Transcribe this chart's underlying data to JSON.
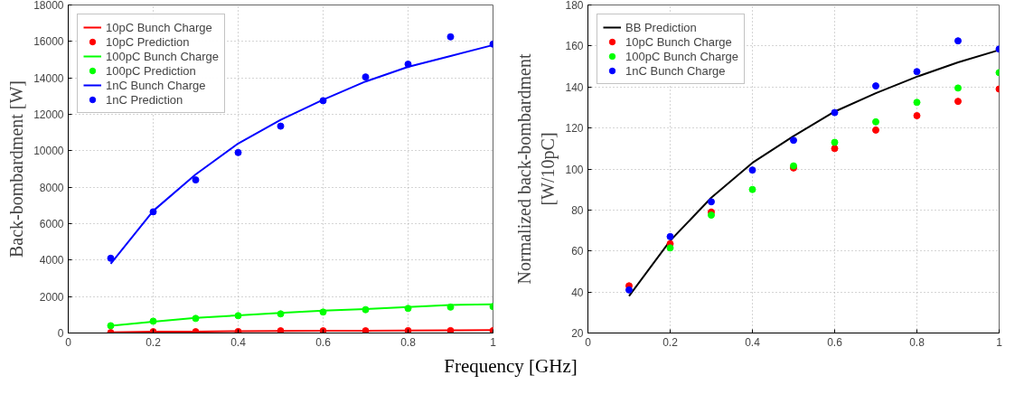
{
  "chart_data": [
    {
      "type": "line",
      "xlabel": "Frequency [GHz]",
      "ylabel": "Back-bombardment [W]",
      "x": [
        0.1,
        0.2,
        0.3,
        0.4,
        0.5,
        0.6,
        0.7,
        0.8,
        0.9,
        1.0
      ],
      "xlim": [
        0,
        1
      ],
      "xticks": [
        0,
        0.2,
        0.4,
        0.6,
        0.8,
        1
      ],
      "ylim": [
        0,
        18000
      ],
      "yticks": [
        0,
        2000,
        4000,
        6000,
        8000,
        10000,
        12000,
        14000,
        16000,
        18000
      ],
      "grid": true,
      "legend": "top left",
      "series": [
        {
          "name": "10pC Bunch Charge",
          "color": "#ff0000",
          "values": [
            40,
            70,
            80,
            100,
            110,
            120,
            130,
            140,
            150,
            160
          ]
        },
        {
          "name": "10pC Prediction",
          "type": "scatter",
          "marker": "circle",
          "color": "#ff0000",
          "values": [
            20,
            70,
            70,
            80,
            120,
            120,
            120,
            130,
            130,
            130
          ]
        },
        {
          "name": "100pC Bunch Charge",
          "color": "#00ff00",
          "values": [
            400,
            620,
            830,
            970,
            1100,
            1230,
            1320,
            1420,
            1540,
            1580
          ]
        },
        {
          "name": "100pC Prediction",
          "type": "scatter",
          "marker": "circle",
          "color": "#00ff00",
          "values": [
            400,
            650,
            800,
            950,
            1050,
            1150,
            1280,
            1350,
            1420,
            1450
          ]
        },
        {
          "name": "1nC Bunch Charge",
          "color": "#0000ff",
          "values": [
            3800,
            6700,
            8700,
            10400,
            11700,
            12800,
            13800,
            14600,
            15200,
            15800
          ]
        },
        {
          "name": "1nC Prediction",
          "type": "scatter",
          "marker": "circle",
          "color": "#0000ff",
          "values": [
            4100,
            6650,
            8400,
            9900,
            11350,
            12750,
            14050,
            14750,
            16250,
            15850
          ]
        }
      ]
    },
    {
      "type": "line",
      "ylabel": "Normalized back-bombardment\n[W/10pC]",
      "x": [
        0.1,
        0.2,
        0.3,
        0.4,
        0.5,
        0.6,
        0.7,
        0.8,
        0.9,
        1.0
      ],
      "xlim": [
        0,
        1
      ],
      "xticks": [
        0,
        0.2,
        0.4,
        0.6,
        0.8,
        1
      ],
      "ylim": [
        20,
        180
      ],
      "yticks": [
        20,
        40,
        60,
        80,
        100,
        120,
        140,
        160,
        180
      ],
      "grid": true,
      "legend": "top left",
      "series": [
        {
          "name": "BB Prediction",
          "color": "#000000",
          "values": [
            38,
            65,
            86,
            103,
            116,
            128,
            137,
            145,
            152,
            158
          ]
        },
        {
          "name": "10pC Bunch Charge",
          "type": "scatter",
          "marker": "circle",
          "color": "#ff0000",
          "values": [
            43,
            63.5,
            79,
            null,
            100.5,
            110,
            119,
            126,
            133,
            139
          ]
        },
        {
          "name": "100pC Bunch Charge",
          "type": "scatter",
          "marker": "circle",
          "color": "#00ff00",
          "values": [
            null,
            61.5,
            77.5,
            90,
            101.5,
            113,
            123,
            132.5,
            139.5,
            147
          ]
        },
        {
          "name": "1nC Bunch Charge",
          "type": "scatter",
          "marker": "circle",
          "color": "#0000ff",
          "values": [
            41,
            67,
            84,
            99.5,
            114,
            127.5,
            140.5,
            147.5,
            162.5,
            158.5
          ]
        }
      ]
    }
  ]
}
